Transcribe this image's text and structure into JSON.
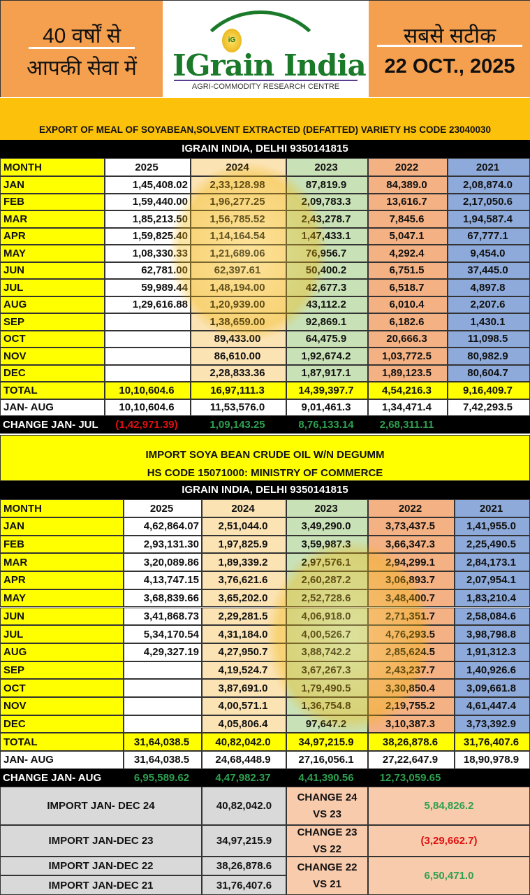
{
  "header": {
    "left_line1": "40 वर्षों से",
    "left_line2": "आपकी सेवा में",
    "logo_text": "IGrain India",
    "logo_subtitle": "AGRI-COMMODITY RESEARCH CENTRE",
    "right_line1": "सबसे सटीक",
    "date": "22 OCT., 2025"
  },
  "colors": {
    "month": "#ffff00",
    "y2025": "#ffffff",
    "y2024": "#fbe3b4",
    "y2023": "#c9e1b6",
    "y2022": "#f4b183",
    "y2021": "#8eaadb",
    "positive": "#2ea04f",
    "negative": "#e01010"
  },
  "table1": {
    "title": "EXPORT OF MEAL OF SOYABEAN,SOLVENT EXTRACTED (DEFATTED) VARIETY HS CODE 23040030",
    "source": "IGRAIN INDIA, DELHI 9350141815",
    "headers": [
      "MONTH",
      "2025",
      "2024",
      "2023",
      "2022",
      "2021"
    ],
    "rows": [
      [
        "JAN",
        "1,45,408.02",
        "2,33,128.98",
        "87,819.9",
        "84,389.0",
        "2,08,874.0"
      ],
      [
        "FEB",
        "1,59,440.00",
        "1,96,277.25",
        "2,09,783.3",
        "13,616.7",
        "2,17,050.6"
      ],
      [
        "MAR",
        "1,85,213.50",
        "1,56,785.52",
        "2,43,278.7",
        "7,845.6",
        "1,94,587.4"
      ],
      [
        "APR",
        "1,59,825.40",
        "1,14,164.54",
        "1,47,433.1",
        "5,047.1",
        "67,777.1"
      ],
      [
        "MAY",
        "1,08,330.33",
        "1,21,689.06",
        "76,956.7",
        "4,292.4",
        "9,454.0"
      ],
      [
        "JUN",
        "62,781.00",
        "62,397.61",
        "50,400.2",
        "6,751.5",
        "37,445.0"
      ],
      [
        "JUL",
        "59,989.44",
        "1,48,194.00",
        "42,677.3",
        "6,518.7",
        "4,897.8"
      ],
      [
        "AUG",
        "1,29,616.88",
        "1,20,939.00",
        "43,112.2",
        "6,010.4",
        "2,207.6"
      ],
      [
        "SEP",
        "",
        "1,38,659.00",
        "92,869.1",
        "6,182.6",
        "1,430.1"
      ],
      [
        "OCT",
        "",
        "89,433.00",
        "64,475.9",
        "20,666.3",
        "11,098.5"
      ],
      [
        "NOV",
        "",
        "86,610.00",
        "1,92,674.2",
        "1,03,772.5",
        "80,982.9"
      ],
      [
        "DEC",
        "",
        "2,28,833.36",
        "1,87,917.1",
        "1,89,123.5",
        "80,604.7"
      ]
    ],
    "total": [
      "TOTAL",
      "10,10,604.6",
      "16,97,111.3",
      "14,39,397.7",
      "4,54,216.3",
      "9,16,409.7"
    ],
    "period": [
      "JAN- AUG",
      "10,10,604.6",
      "11,53,576.0",
      "9,01,461.3",
      "1,34,471.4",
      "7,42,293.5"
    ],
    "change": [
      "CHANGE JAN- JUL",
      "(1,42,971.39)",
      "1,09,143.25",
      "8,76,133.14",
      "2,68,311.11",
      ""
    ]
  },
  "table2": {
    "title_line1": "IMPORT SOYA BEAN CRUDE OIL W/N DEGUMM",
    "title_line2": "HS CODE 15071000: MINISTRY OF COMMERCE",
    "source": "IGRAIN INDIA, DELHI 9350141815",
    "headers": [
      "MONTH",
      "2025",
      "2024",
      "2023",
      "2022",
      "2021"
    ],
    "rows": [
      [
        "JAN",
        "4,62,864.07",
        "2,51,044.0",
        "3,49,290.0",
        "3,73,437.5",
        "1,41,955.0"
      ],
      [
        "FEB",
        "2,93,131.30",
        "1,97,825.9",
        "3,59,987.3",
        "3,66,347.3",
        "2,25,490.5"
      ],
      [
        "MAR",
        "3,20,089.86",
        "1,89,339.2",
        "2,97,576.1",
        "2,94,299.1",
        "2,84,173.1"
      ],
      [
        "APR",
        "4,13,747.15",
        "3,76,621.6",
        "2,60,287.2",
        "3,06,893.7",
        "2,07,954.1"
      ],
      [
        "MAY",
        "3,68,839.66",
        "3,65,202.0",
        "2,52,728.6",
        "3,48,400.7",
        "1,83,210.4"
      ],
      [
        "JUN",
        "3,41,868.73",
        "2,29,281.5",
        "4,06,918.0",
        "2,71,351.7",
        "2,58,084.6"
      ],
      [
        "JUL",
        "5,34,170.54",
        "4,31,184.0",
        "4,00,526.7",
        "4,76,293.5",
        "3,98,798.8"
      ],
      [
        "AUG",
        "4,29,327.19",
        "4,27,950.7",
        "3,88,742.2",
        "2,85,624.5",
        "1,91,312.3"
      ],
      [
        "SEP",
        "",
        "4,19,524.7",
        "3,67,267.3",
        "2,43,237.7",
        "1,40,926.6"
      ],
      [
        "OCT",
        "",
        "3,87,691.0",
        "1,79,490.5",
        "3,30,850.4",
        "3,09,661.8"
      ],
      [
        "NOV",
        "",
        "4,00,571.1",
        "1,36,754.8",
        "2,19,755.2",
        "4,61,447.4"
      ],
      [
        "DEC",
        "",
        "4,05,806.4",
        "97,647.2",
        "3,10,387.3",
        "3,73,392.9"
      ]
    ],
    "total": [
      "TOTAL",
      "31,64,038.5",
      "40,82,042.0",
      "34,97,215.9",
      "38,26,878.6",
      "31,76,407.6"
    ],
    "period": [
      "JAN- AUG",
      "31,64,038.5",
      "24,68,448.9",
      "27,16,056.1",
      "27,22,647.9",
      "18,90,978.9"
    ],
    "change": [
      "CHANGE JAN- AUG",
      "6,95,589.62",
      "4,47,982.37",
      "4,41,390.56",
      "12,73,059.65",
      ""
    ]
  },
  "summary": {
    "rows": [
      {
        "label": "IMPORT JAN- DEC 24",
        "value": "40,82,042.0"
      },
      {
        "label": "IMPORT JAN-DEC 23",
        "value": "34,97,215.9"
      },
      {
        "label": "IMPORT JAN-DEC 22",
        "value": "38,26,878.6"
      },
      {
        "label": "IMPORT JAN-DEC 21",
        "value": "31,76,407.6"
      }
    ],
    "changes": [
      {
        "label_line1": "CHANGE 24",
        "label_line2": "VS 23",
        "value": "5,84,826.2",
        "sign": "positive"
      },
      {
        "label_line1": "CHANGE 23",
        "label_line2": "VS 22",
        "value": "(3,29,662.7)",
        "sign": "negative"
      },
      {
        "label_line1": "CHANGE 22",
        "label_line2": "VS 21",
        "value": "6,50,471.0",
        "sign": "positive"
      }
    ]
  }
}
